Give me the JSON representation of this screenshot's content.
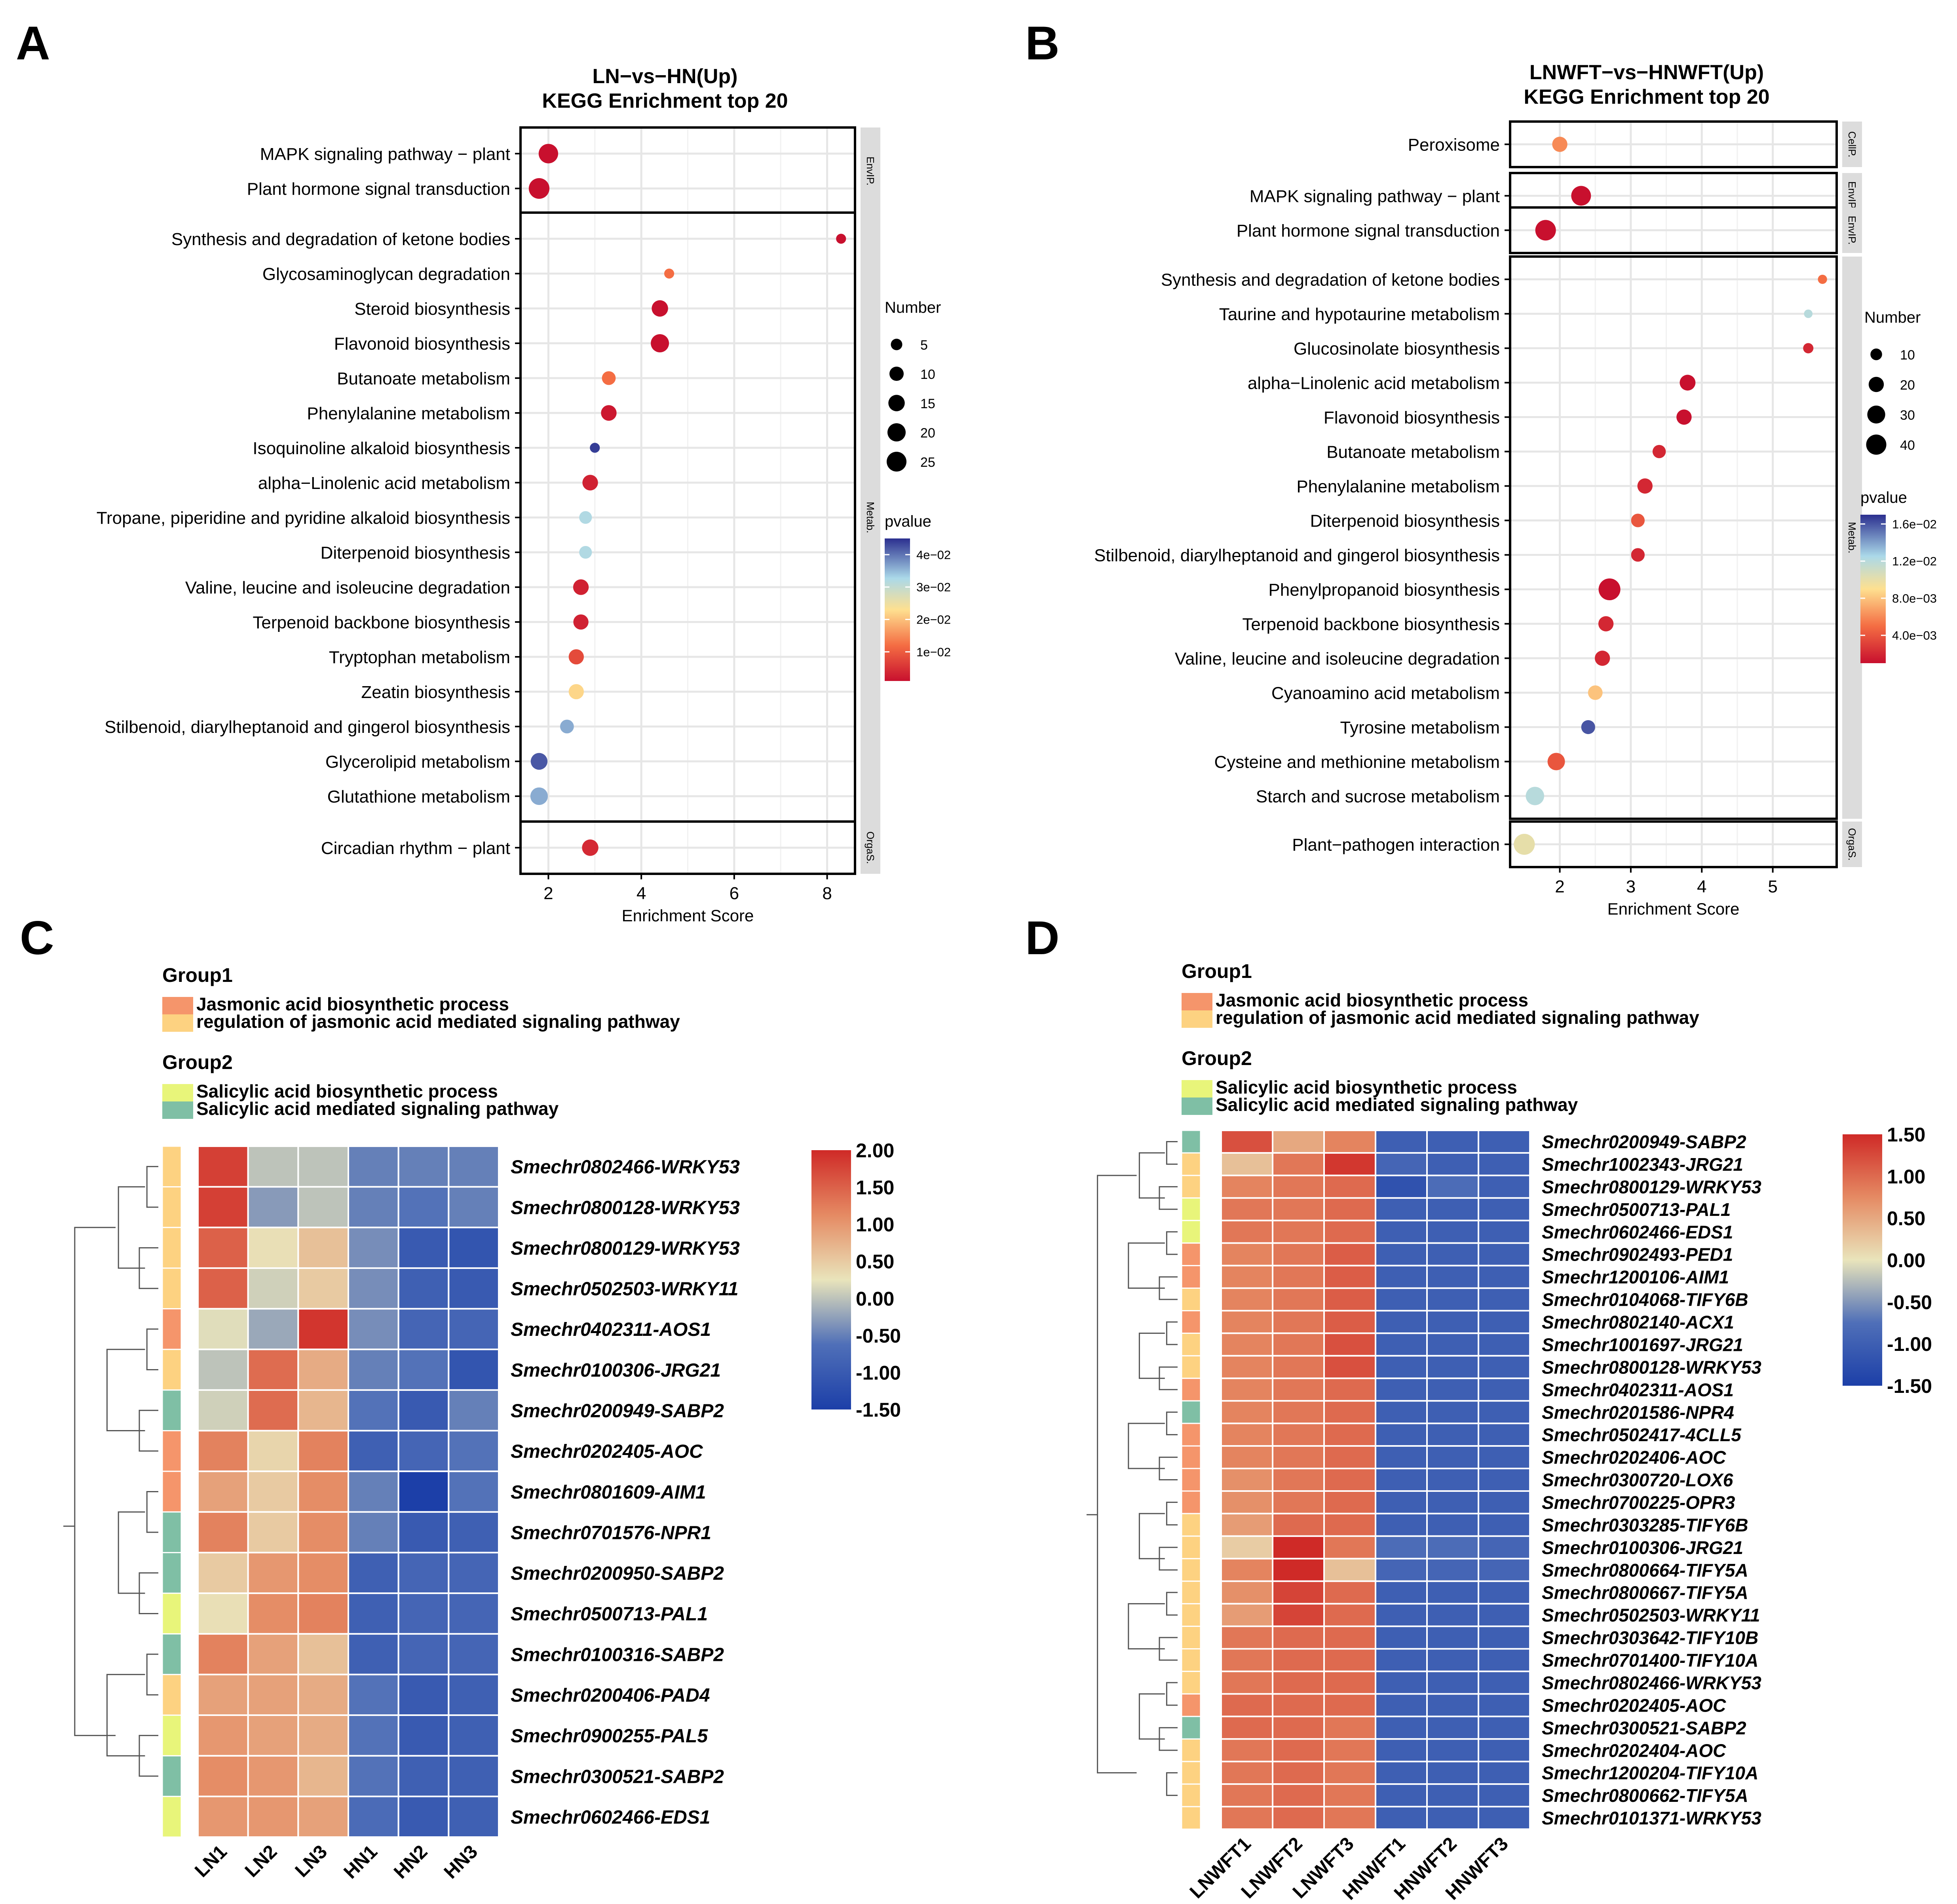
{
  "panels": {
    "A": "A",
    "B": "B",
    "C": "C",
    "D": "D"
  },
  "chart_data": [
    {
      "type": "scatter",
      "panel": "A",
      "title": "LN−vs−HN(Up)",
      "subtitle": "KEGG Enrichment top 20",
      "xlabel": "Enrichment Score",
      "xlim": [
        1.4,
        8.6
      ],
      "xticks": [
        2,
        4,
        6,
        8
      ],
      "facets": [
        {
          "label": "EnvIP.",
          "points": [
            {
              "term": "MAPK signaling pathway − plant",
              "x": 2.0,
              "number": 24,
              "pvalue": 0.001
            },
            {
              "term": "Plant hormone signal transduction",
              "x": 1.8,
              "number": 28,
              "pvalue": 0.001
            }
          ]
        },
        {
          "label": "Metab.",
          "points": [
            {
              "term": "Synthesis and degradation of ketone bodies",
              "x": 8.3,
              "number": 3,
              "pvalue": 0.001
            },
            {
              "term": "Glycosaminoglycan degradation",
              "x": 4.6,
              "number": 3,
              "pvalue": 0.012
            },
            {
              "term": "Steroid biosynthesis",
              "x": 4.4,
              "number": 15,
              "pvalue": 0.001
            },
            {
              "term": "Flavonoid biosynthesis",
              "x": 4.4,
              "number": 20,
              "pvalue": 0.001
            },
            {
              "term": "Butanoate metabolism",
              "x": 3.3,
              "number": 9,
              "pvalue": 0.012
            },
            {
              "term": "Phenylalanine metabolism",
              "x": 3.3,
              "number": 13,
              "pvalue": 0.002
            },
            {
              "term": "Isoquinoline alkaloid biosynthesis",
              "x": 3.0,
              "number": 3,
              "pvalue": 0.044
            },
            {
              "term": "alpha−Linolenic acid metabolism",
              "x": 2.9,
              "number": 13,
              "pvalue": 0.003
            },
            {
              "term": "Tropane, piperidine and pyridine alkaloid biosynthesis",
              "x": 2.8,
              "number": 7,
              "pvalue": 0.032
            },
            {
              "term": "Diterpenoid biosynthesis",
              "x": 2.8,
              "number": 7,
              "pvalue": 0.032
            },
            {
              "term": "Valine, leucine and isoleucine degradation",
              "x": 2.7,
              "number": 13,
              "pvalue": 0.003
            },
            {
              "term": "Terpenoid backbone biosynthesis",
              "x": 2.7,
              "number": 12,
              "pvalue": 0.003
            },
            {
              "term": "Tryptophan metabolism",
              "x": 2.6,
              "number": 12,
              "pvalue": 0.008
            },
            {
              "term": "Zeatin biosynthesis",
              "x": 2.6,
              "number": 12,
              "pvalue": 0.022
            },
            {
              "term": "Stilbenoid, diarylheptanoid and gingerol biosynthesis",
              "x": 2.4,
              "number": 9,
              "pvalue": 0.036
            },
            {
              "term": "Glycerolipid metabolism",
              "x": 1.8,
              "number": 16,
              "pvalue": 0.042
            },
            {
              "term": "Glutathione metabolism",
              "x": 1.8,
              "number": 18,
              "pvalue": 0.036
            }
          ]
        },
        {
          "label": "OrgaS.",
          "points": [
            {
              "term": "Circadian rhythm − plant",
              "x": 2.9,
              "number": 15,
              "pvalue": 0.004
            }
          ]
        }
      ],
      "size_legend": {
        "title": "Number",
        "values": [
          5,
          10,
          15,
          20,
          25
        ],
        "labels": [
          "5",
          "10",
          "15",
          "20",
          "25"
        ]
      },
      "color_legend": {
        "title": "pvalue",
        "min": 0.001,
        "max": 0.045,
        "ticks": [
          0.04,
          0.03,
          0.02,
          0.01
        ],
        "tick_labels": [
          "4e−02",
          "3e−02",
          "2e−02",
          "1e−02"
        ]
      }
    },
    {
      "type": "scatter",
      "panel": "B",
      "title": "LNWFT−vs−HNWFT(Up)",
      "subtitle": "KEGG Enrichment top 20",
      "xlabel": "Enrichment Score",
      "xlim": [
        1.3,
        5.9
      ],
      "xticks": [
        2,
        3,
        4,
        5
      ],
      "facets": [
        {
          "label": "CellP.",
          "points": [
            {
              "term": "Peroxisome",
              "x": 2.0,
              "number": 20,
              "pvalue": 0.006
            }
          ]
        },
        {
          "label": "EnvIP.",
          "points": [
            {
              "term": "MAPK signaling pathway − plant",
              "x": 2.3,
              "number": 38,
              "pvalue": 0.001
            }
          ]
        },
        {
          "label": "EnvIP.",
          "points": [
            {
              "term": "Plant hormone signal transduction",
              "x": 1.8,
              "number": 42,
              "pvalue": 0.001
            }
          ]
        },
        {
          "label": "Metab.",
          "points": [
            {
              "term": "Synthesis and degradation of ketone bodies",
              "x": 5.7,
              "number": 5,
              "pvalue": 0.005
            },
            {
              "term": "Taurine and hypotaurine metabolism",
              "x": 5.5,
              "number": 4,
              "pvalue": 0.012
            },
            {
              "term": "Glucosinolate biosynthesis",
              "x": 5.5,
              "number": 7,
              "pvalue": 0.002
            },
            {
              "term": "alpha−Linolenic acid metabolism",
              "x": 3.8,
              "number": 22,
              "pvalue": 0.001
            },
            {
              "term": "Flavonoid biosynthesis",
              "x": 3.75,
              "number": 20,
              "pvalue": 0.001
            },
            {
              "term": "Butanoate metabolism",
              "x": 3.4,
              "number": 14,
              "pvalue": 0.002
            },
            {
              "term": "Phenylalanine metabolism",
              "x": 3.2,
              "number": 20,
              "pvalue": 0.002
            },
            {
              "term": "Diterpenoid biosynthesis",
              "x": 3.1,
              "number": 15,
              "pvalue": 0.004
            },
            {
              "term": "Stilbenoid, diarylheptanoid and gingerol biosynthesis",
              "x": 3.1,
              "number": 15,
              "pvalue": 0.002
            },
            {
              "term": "Phenylpropanoid biosynthesis",
              "x": 2.7,
              "number": 48,
              "pvalue": 0.001
            },
            {
              "term": "Terpenoid backbone biosynthesis",
              "x": 2.65,
              "number": 20,
              "pvalue": 0.002
            },
            {
              "term": "Valine, leucine and isoleucine degradation",
              "x": 2.6,
              "number": 20,
              "pvalue": 0.002
            },
            {
              "term": "Cyanoamino acid metabolism",
              "x": 2.5,
              "number": 18,
              "pvalue": 0.008
            },
            {
              "term": "Tyrosine metabolism",
              "x": 2.4,
              "number": 16,
              "pvalue": 0.016
            },
            {
              "term": "Cysteine and methionine metabolism",
              "x": 1.95,
              "number": 28,
              "pvalue": 0.004
            },
            {
              "term": "Starch and sucrose metabolism",
              "x": 1.65,
              "number": 32,
              "pvalue": 0.012
            }
          ]
        },
        {
          "label": "OrgaS.",
          "points": [
            {
              "term": "Plant−pathogen interaction",
              "x": 1.5,
              "number": 44,
              "pvalue": 0.01
            }
          ]
        }
      ],
      "size_legend": {
        "title": "Number",
        "values": [
          10,
          20,
          30,
          40
        ],
        "labels": [
          "10",
          "20",
          "30",
          "40"
        ]
      },
      "color_legend": {
        "title": "pvalue",
        "min": 0.001,
        "max": 0.017,
        "ticks": [
          0.016,
          0.012,
          0.008,
          0.004
        ],
        "tick_labels": [
          "1.6e−02",
          "1.2e−02",
          "8.0e−03",
          "4.0e−03"
        ]
      }
    },
    {
      "type": "heatmap",
      "panel": "C",
      "columns": [
        "LN1",
        "LN2",
        "LN3",
        "HN1",
        "HN2",
        "HN3"
      ],
      "rows": [
        "Smechr0802466-WRKY53",
        "Smechr0800128-WRKY53",
        "Smechr0800129-WRKY53",
        "Smechr0502503-WRKY11",
        "Smechr0402311-AOS1",
        "Smechr0100306-JRG21",
        "Smechr0200949-SABP2",
        "Smechr0202405-AOC",
        "Smechr0801609-AIM1",
        "Smechr0701576-NPR1",
        "Smechr0200950-SABP2",
        "Smechr0500713-PAL1",
        "Smechr0100316-SABP2",
        "Smechr0200406-PAD4",
        "Smechr0900255-PAL5",
        "Smechr0300521-SABP2",
        "Smechr0602466-EDS1"
      ],
      "groups": [
        "r",
        "r",
        "r",
        "r",
        "j",
        "r",
        "m",
        "j",
        "j",
        "m",
        "m",
        "s",
        "m",
        "r",
        "s",
        "m",
        "s"
      ],
      "values": [
        [
          1.8,
          0.0,
          0.0,
          -0.5,
          -0.5,
          -0.5
        ],
        [
          1.8,
          -0.3,
          0.0,
          -0.5,
          -0.6,
          -0.5
        ],
        [
          1.5,
          0.3,
          0.6,
          -0.4,
          -1.0,
          -1.1
        ],
        [
          1.5,
          0.1,
          0.5,
          -0.4,
          -0.9,
          -1.0
        ],
        [
          0.2,
          -0.2,
          1.9,
          -0.4,
          -0.8,
          -0.8
        ],
        [
          0.0,
          1.4,
          0.8,
          -0.5,
          -0.6,
          -1.1
        ],
        [
          0.1,
          1.4,
          0.7,
          -0.6,
          -1.0,
          -0.5
        ],
        [
          1.2,
          0.4,
          1.2,
          -0.9,
          -0.8,
          -0.6
        ],
        [
          0.9,
          0.5,
          1.1,
          -0.5,
          -1.5,
          -0.6
        ],
        [
          1.2,
          0.5,
          1.1,
          -0.5,
          -1.0,
          -0.9
        ],
        [
          0.5,
          1.0,
          1.1,
          -0.9,
          -0.8,
          -0.8
        ],
        [
          0.3,
          1.1,
          1.2,
          -0.9,
          -0.8,
          -0.8
        ],
        [
          1.2,
          0.9,
          0.6,
          -0.9,
          -0.8,
          -0.8
        ],
        [
          0.9,
          0.9,
          0.8,
          -0.6,
          -1.0,
          -0.9
        ],
        [
          1.0,
          0.9,
          0.8,
          -0.6,
          -1.0,
          -0.9
        ],
        [
          1.1,
          1.0,
          0.7,
          -0.6,
          -0.9,
          -0.9
        ],
        [
          1.0,
          1.0,
          0.9,
          -0.7,
          -1.0,
          -0.9
        ]
      ],
      "legend": {
        "min": -1.5,
        "max": 2.0,
        "tick_labels": [
          "2.00",
          "1.50",
          "1.00",
          "0.50",
          "0.00",
          "-0.50",
          "-1.00",
          "-1.50"
        ]
      },
      "group1_title": "Group1",
      "group1_items": [
        "Jasmonic acid biosynthetic process",
        "regulation of jasmonic acid mediated signaling pathway"
      ],
      "group2_title": "Group2",
      "group2_items": [
        "Salicylic acid  biosynthetic  process",
        "Salicylic acid mediated signaling pathway"
      ]
    },
    {
      "type": "heatmap",
      "panel": "D",
      "columns": [
        "LNWFT1",
        "LNWFT2",
        "LNWFT3",
        "HNWFT1",
        "HNWFT2",
        "HNWFT3"
      ],
      "rows": [
        "Smechr0200949-SABP2",
        "Smechr1002343-JRG21",
        "Smechr0800129-WRKY53",
        "Smechr0500713-PAL1",
        "Smechr0602466-EDS1",
        "Smechr0902493-PED1",
        "Smechr1200106-AIM1",
        "Smechr0104068-TIFY6B",
        "Smechr0802140-ACX1",
        "Smechr1001697-JRG21",
        "Smechr0800128-WRKY53",
        "Smechr0402311-AOS1",
        "Smechr0201586-NPR4",
        "Smechr0502417-4CLL5",
        "Smechr0202406-AOC",
        "Smechr0300720-LOX6",
        "Smechr0700225-OPR3",
        "Smechr0303285-TIFY6B",
        "Smechr0100306-JRG21",
        "Smechr0800664-TIFY5A",
        "Smechr0800667-TIFY5A",
        "Smechr0502503-WRKY11",
        "Smechr0303642-TIFY10B",
        "Smechr0701400-TIFY10A",
        "Smechr0802466-WRKY53",
        "Smechr0202405-AOC",
        "Smechr0300521-SABP2",
        "Smechr0202404-AOC",
        "Smechr1200204-TIFY10A",
        "Smechr0800662-TIFY5A",
        "Smechr0101371-WRKY53"
      ],
      "groups": [
        "m",
        "r",
        "r",
        "s",
        "s",
        "j",
        "j",
        "r",
        "j",
        "r",
        "r",
        "j",
        "m",
        "j",
        "j",
        "j",
        "j",
        "r",
        "r",
        "r",
        "r",
        "r",
        "r",
        "r",
        "r",
        "j",
        "m",
        "r",
        "r",
        "r",
        "r"
      ],
      "values": [
        [
          1.2,
          0.5,
          0.8,
          -1.0,
          -1.0,
          -1.0
        ],
        [
          0.3,
          0.9,
          1.4,
          -0.9,
          -1.0,
          -1.0
        ],
        [
          0.8,
          0.9,
          1.0,
          -1.2,
          -0.8,
          -1.0
        ],
        [
          0.9,
          0.9,
          1.0,
          -1.0,
          -1.0,
          -1.0
        ],
        [
          0.9,
          0.9,
          1.0,
          -1.0,
          -1.0,
          -1.0
        ],
        [
          0.8,
          0.9,
          1.1,
          -1.0,
          -1.0,
          -1.0
        ],
        [
          0.8,
          0.9,
          1.1,
          -1.0,
          -1.0,
          -1.0
        ],
        [
          0.8,
          0.9,
          1.1,
          -1.0,
          -1.0,
          -1.0
        ],
        [
          0.8,
          0.9,
          1.1,
          -1.0,
          -1.0,
          -1.0
        ],
        [
          0.8,
          0.9,
          1.2,
          -1.0,
          -1.0,
          -1.0
        ],
        [
          0.8,
          0.9,
          1.2,
          -1.0,
          -1.0,
          -1.0
        ],
        [
          0.8,
          0.9,
          1.0,
          -1.0,
          -1.0,
          -1.0
        ],
        [
          0.8,
          0.9,
          1.0,
          -1.0,
          -1.0,
          -1.0
        ],
        [
          0.8,
          0.9,
          1.0,
          -1.0,
          -1.0,
          -1.0
        ],
        [
          0.8,
          0.9,
          1.0,
          -1.0,
          -1.0,
          -1.0
        ],
        [
          0.7,
          0.9,
          1.0,
          -1.0,
          -1.0,
          -1.0
        ],
        [
          0.7,
          0.9,
          1.0,
          -1.0,
          -1.0,
          -1.0
        ],
        [
          0.6,
          1.0,
          1.0,
          -1.0,
          -1.0,
          -1.0
        ],
        [
          0.2,
          1.5,
          0.9,
          -0.8,
          -0.8,
          -0.9
        ],
        [
          0.8,
          1.5,
          0.3,
          -0.9,
          -0.9,
          -0.9
        ],
        [
          0.7,
          1.3,
          1.0,
          -1.0,
          -1.0,
          -1.0
        ],
        [
          0.6,
          1.3,
          1.0,
          -1.0,
          -1.0,
          -1.0
        ],
        [
          0.9,
          1.0,
          1.0,
          -1.0,
          -1.0,
          -1.0
        ],
        [
          0.9,
          1.0,
          1.0,
          -1.0,
          -1.0,
          -1.0
        ],
        [
          0.9,
          1.0,
          1.0,
          -1.0,
          -1.0,
          -1.0
        ],
        [
          1.0,
          1.0,
          1.0,
          -1.0,
          -1.0,
          -1.0
        ],
        [
          1.0,
          1.0,
          0.9,
          -1.0,
          -1.0,
          -1.0
        ],
        [
          0.9,
          1.0,
          0.9,
          -1.0,
          -1.0,
          -1.0
        ],
        [
          0.9,
          1.0,
          0.9,
          -1.0,
          -1.0,
          -1.0
        ],
        [
          0.9,
          1.0,
          0.9,
          -1.0,
          -1.0,
          -1.0
        ],
        [
          0.9,
          1.0,
          0.9,
          -1.0,
          -1.0,
          -1.0
        ]
      ],
      "legend": {
        "min": -1.5,
        "max": 1.5,
        "tick_labels": [
          "1.50",
          "1.00",
          "0.50",
          "0.00",
          "-0.50",
          "-1.00",
          "-1.50"
        ]
      },
      "group1_title": "Group1",
      "group1_items": [
        "Jasmonic acid biosynthetic process",
        "regulation of jasmonic acid mediated signaling pathway"
      ],
      "group2_title": "Group2",
      "group2_items": [
        "Salicylic acid  biosynthetic  process",
        "Salicylic acid mediated signaling pathway"
      ]
    }
  ],
  "colors": {
    "group_j": "#f5956b",
    "group_r": "#fdd281",
    "group_s": "#e8f57a",
    "group_m": "#7fbfa5",
    "strip": "#dcdcdc",
    "grid": "#e6e6e6"
  }
}
